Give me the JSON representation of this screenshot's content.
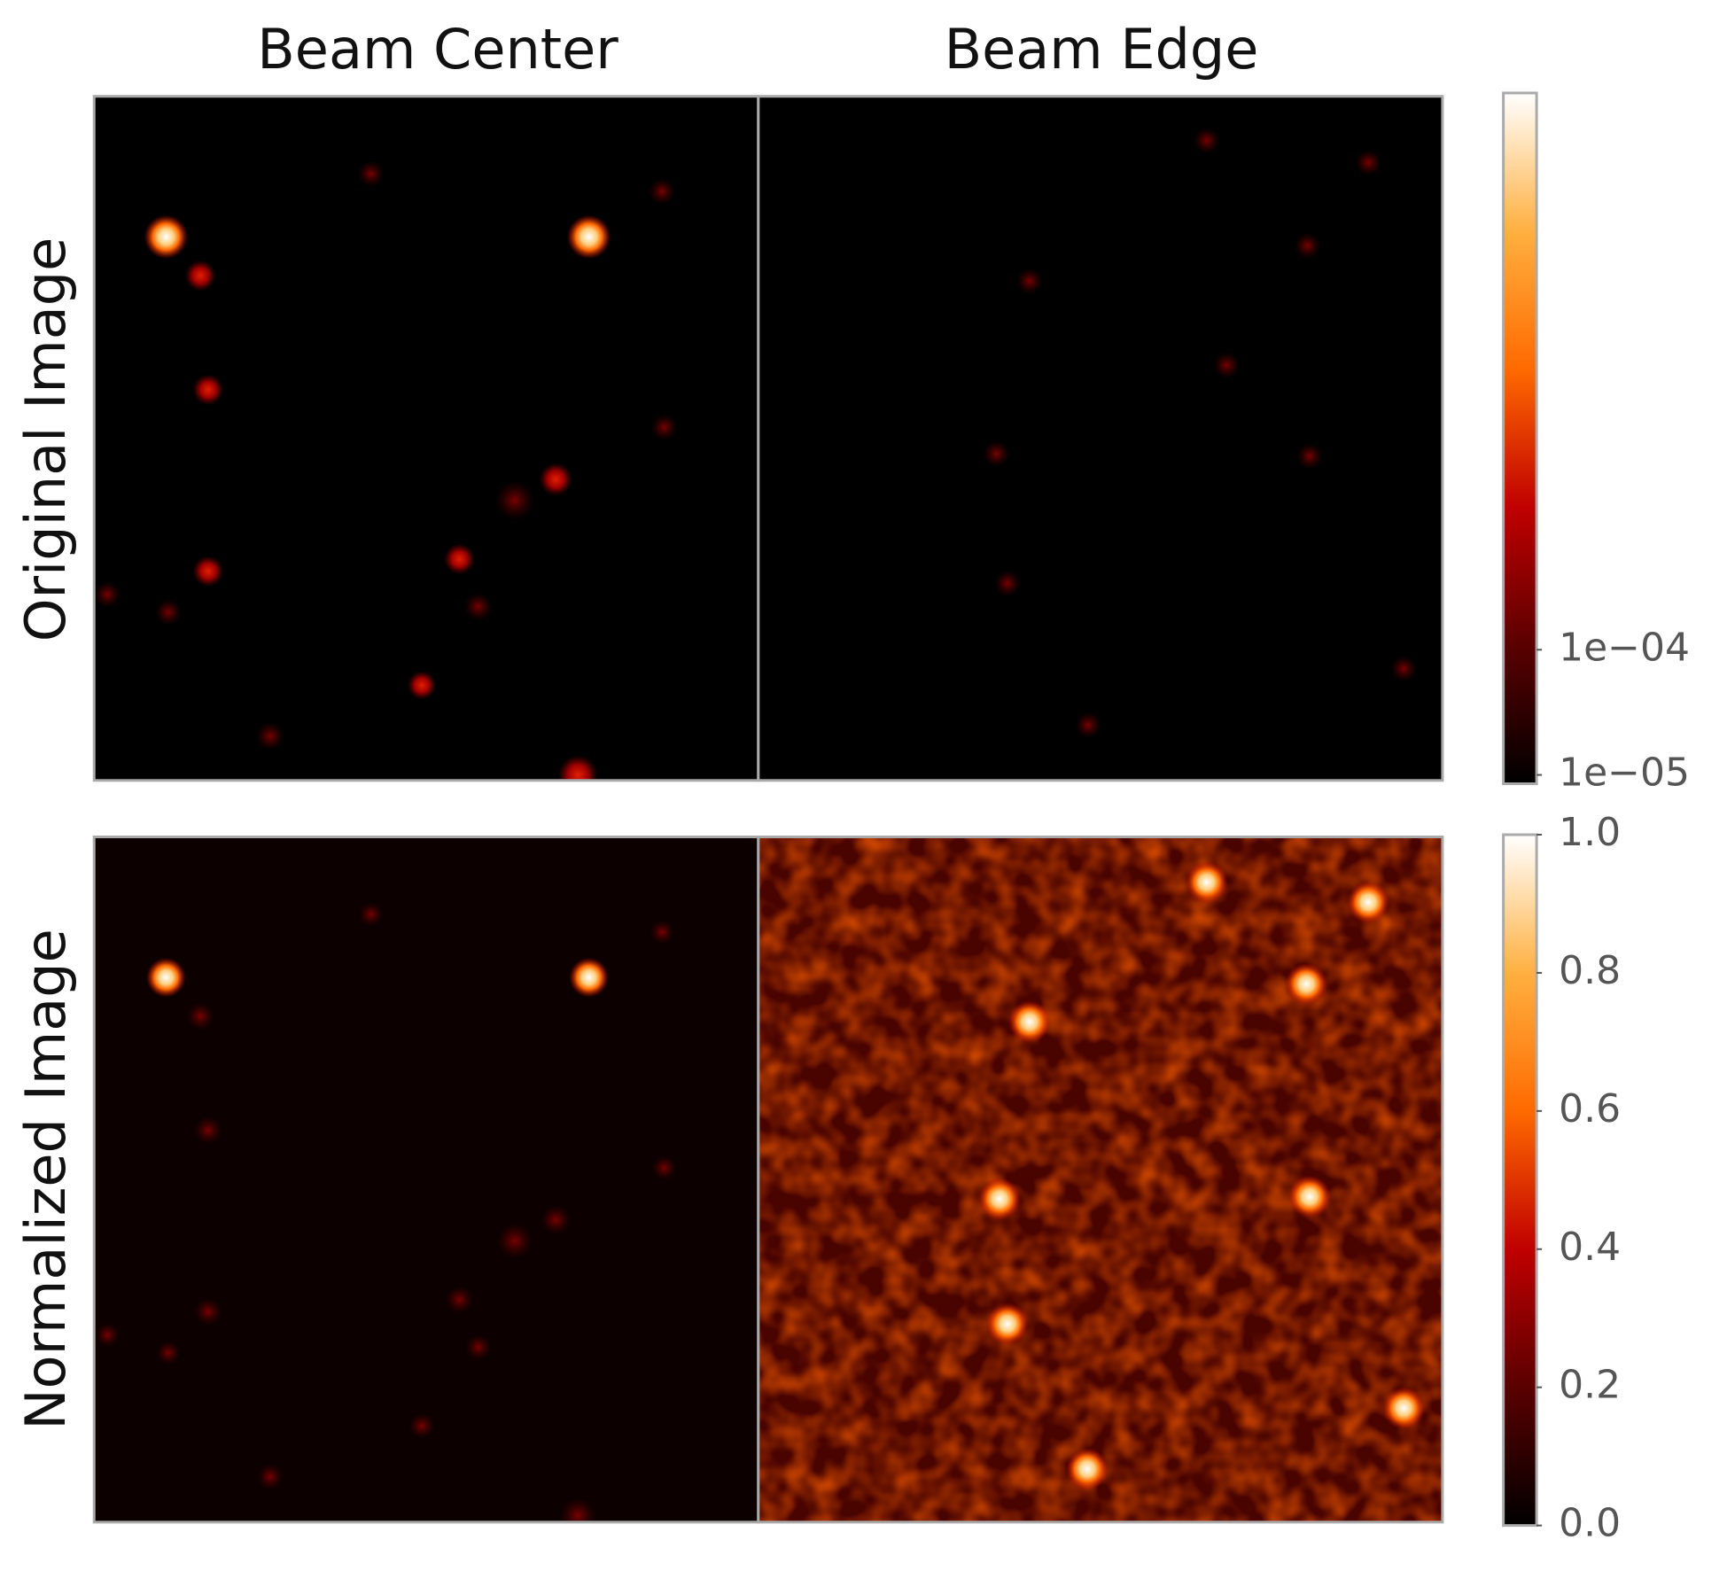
{
  "chart_data": {
    "type": "image-grid",
    "columns": [
      "Beam Center",
      "Beam Edge"
    ],
    "rows": [
      "Original Image",
      "Normalized Image"
    ],
    "colormap": [
      "#000000",
      "#5a0000",
      "#c00000",
      "#ff6a00",
      "#ffb040",
      "#ffffff"
    ],
    "colorbars": [
      {
        "log": true,
        "ylim": [
          8.5e-06,
          2.8
        ],
        "yticks": [
          {
            "value": 1e-05,
            "label": "1e−05"
          },
          {
            "value": 0.0001,
            "label": "1e−04"
          }
        ]
      },
      {
        "log": false,
        "ylim": [
          0,
          1
        ],
        "yticks": [
          {
            "value": 0,
            "label": "0.0"
          },
          {
            "value": 0.2,
            "label": "0.2"
          },
          {
            "value": 0.4,
            "label": "0.4"
          },
          {
            "value": 0.6,
            "label": "0.6"
          },
          {
            "value": 0.8,
            "label": "0.8"
          },
          {
            "value": 1,
            "label": "1.0"
          }
        ]
      }
    ]
  }
}
